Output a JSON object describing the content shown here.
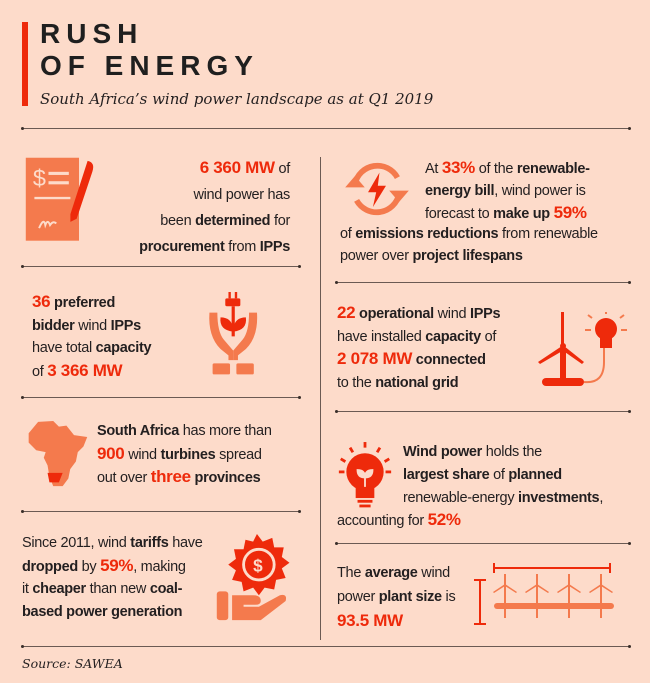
{
  "header": {
    "title_line1": "RUSH",
    "title_line2": "OF ENERGY",
    "subtitle": "South Africa’s wind power landscape as at Q1 2019"
  },
  "colors": {
    "background": "#fddbca",
    "accent_red": "#ee2a0b",
    "accent_orange": "#f47a4d",
    "text": "#231f20"
  },
  "facts": {
    "procurement": {
      "icon": "signed-contract-icon",
      "lines": [
        [
          [
            "r",
            "6 360 MW"
          ],
          [
            "n",
            " of"
          ]
        ],
        [
          [
            "n",
            "wind power has"
          ]
        ],
        [
          [
            "n",
            "been "
          ],
          [
            "b",
            "determined"
          ],
          [
            "n",
            " for"
          ]
        ],
        [
          [
            "b",
            "procurement"
          ],
          [
            "n",
            " from "
          ],
          [
            "b",
            "IPPs"
          ]
        ]
      ]
    },
    "emissions": {
      "icon": "energy-cycle-icon",
      "lines": [
        [
          [
            "n",
            "At "
          ],
          [
            "r",
            "33%"
          ],
          [
            "n",
            " of the "
          ],
          [
            "b",
            "renewable-"
          ]
        ],
        [
          [
            "b",
            "energy bill"
          ],
          [
            "n",
            ", wind power is"
          ]
        ],
        [
          [
            "n",
            "forecast to "
          ],
          [
            "b",
            "make up "
          ],
          [
            "r",
            "59%"
          ]
        ],
        [
          [
            "n",
            "of "
          ],
          [
            "b",
            "emissions reductions"
          ],
          [
            "n",
            " from renewable"
          ]
        ],
        [
          [
            "n",
            "power over "
          ],
          [
            "b",
            "project lifespans"
          ]
        ]
      ]
    },
    "preferred": {
      "icon": "hands-plant-plug-icon",
      "lines": [
        [
          [
            "r",
            "36"
          ],
          [
            "b",
            " preferred"
          ]
        ],
        [
          [
            "b",
            "bidder"
          ],
          [
            "n",
            " wind "
          ],
          [
            "b",
            "IPPs"
          ]
        ],
        [
          [
            "n",
            "have total "
          ],
          [
            "b",
            "capacity"
          ]
        ],
        [
          [
            "n",
            "of "
          ],
          [
            "r",
            "3 366 MW"
          ]
        ]
      ]
    },
    "operational": {
      "icon": "turbine-bulb-icon",
      "lines": [
        [
          [
            "r",
            "22"
          ],
          [
            "b",
            " operational"
          ],
          [
            "n",
            " wind "
          ],
          [
            "b",
            "IPPs"
          ]
        ],
        [
          [
            "n",
            "have installed "
          ],
          [
            "b",
            "capacity"
          ],
          [
            "n",
            " of"
          ]
        ],
        [
          [
            "r",
            "2 078 MW"
          ],
          [
            "b",
            " connected"
          ]
        ],
        [
          [
            "n",
            "to the "
          ],
          [
            "b",
            "national grid"
          ]
        ]
      ]
    },
    "turbines": {
      "icon": "africa-map-icon",
      "lines": [
        [
          [
            "b",
            "South Africa"
          ],
          [
            "n",
            " has more than"
          ]
        ],
        [
          [
            "r",
            "900"
          ],
          [
            "n",
            " wind "
          ],
          [
            "b",
            "turbines"
          ],
          [
            "n",
            " spread"
          ]
        ],
        [
          [
            "n",
            "out over "
          ],
          [
            "r",
            "three"
          ],
          [
            "b",
            " provinces"
          ]
        ]
      ]
    },
    "investments": {
      "icon": "lightbulb-plant-icon",
      "lines": [
        [
          [
            "b",
            "Wind power"
          ],
          [
            "n",
            " holds the"
          ]
        ],
        [
          [
            "b",
            "largest share"
          ],
          [
            "n",
            " of "
          ],
          [
            "b",
            "planned"
          ]
        ],
        [
          [
            "n",
            "renewable-energy "
          ],
          [
            "b",
            "investments"
          ],
          [
            "n",
            ","
          ]
        ]
      ],
      "last_line": [
        [
          "n",
          "accounting for "
        ],
        [
          "r",
          "52%"
        ]
      ]
    },
    "tariffs": {
      "icon": "hand-coin-icon",
      "lines": [
        [
          [
            "n",
            "Since 2011, wind "
          ],
          [
            "b",
            "tariffs"
          ],
          [
            "n",
            " have"
          ]
        ],
        [
          [
            "b",
            "dropped"
          ],
          [
            "n",
            " by "
          ],
          [
            "r",
            "59%"
          ],
          [
            "n",
            ", making"
          ]
        ],
        [
          [
            "n",
            "it "
          ],
          [
            "b",
            "cheaper"
          ],
          [
            "n",
            " than new "
          ],
          [
            "b",
            "coal-"
          ]
        ],
        [
          [
            "b",
            "based power generation"
          ]
        ]
      ]
    },
    "plant_size": {
      "icon": "wind-farm-icon",
      "lines": [
        [
          [
            "n",
            "The "
          ],
          [
            "b",
            "average"
          ],
          [
            "n",
            " wind"
          ]
        ],
        [
          [
            "n",
            "power "
          ],
          [
            "b",
            "plant size"
          ],
          [
            "n",
            " is"
          ]
        ],
        [
          [
            "r",
            "93.5 MW"
          ]
        ]
      ]
    }
  },
  "footer": {
    "source": "Source: SAWEA"
  }
}
